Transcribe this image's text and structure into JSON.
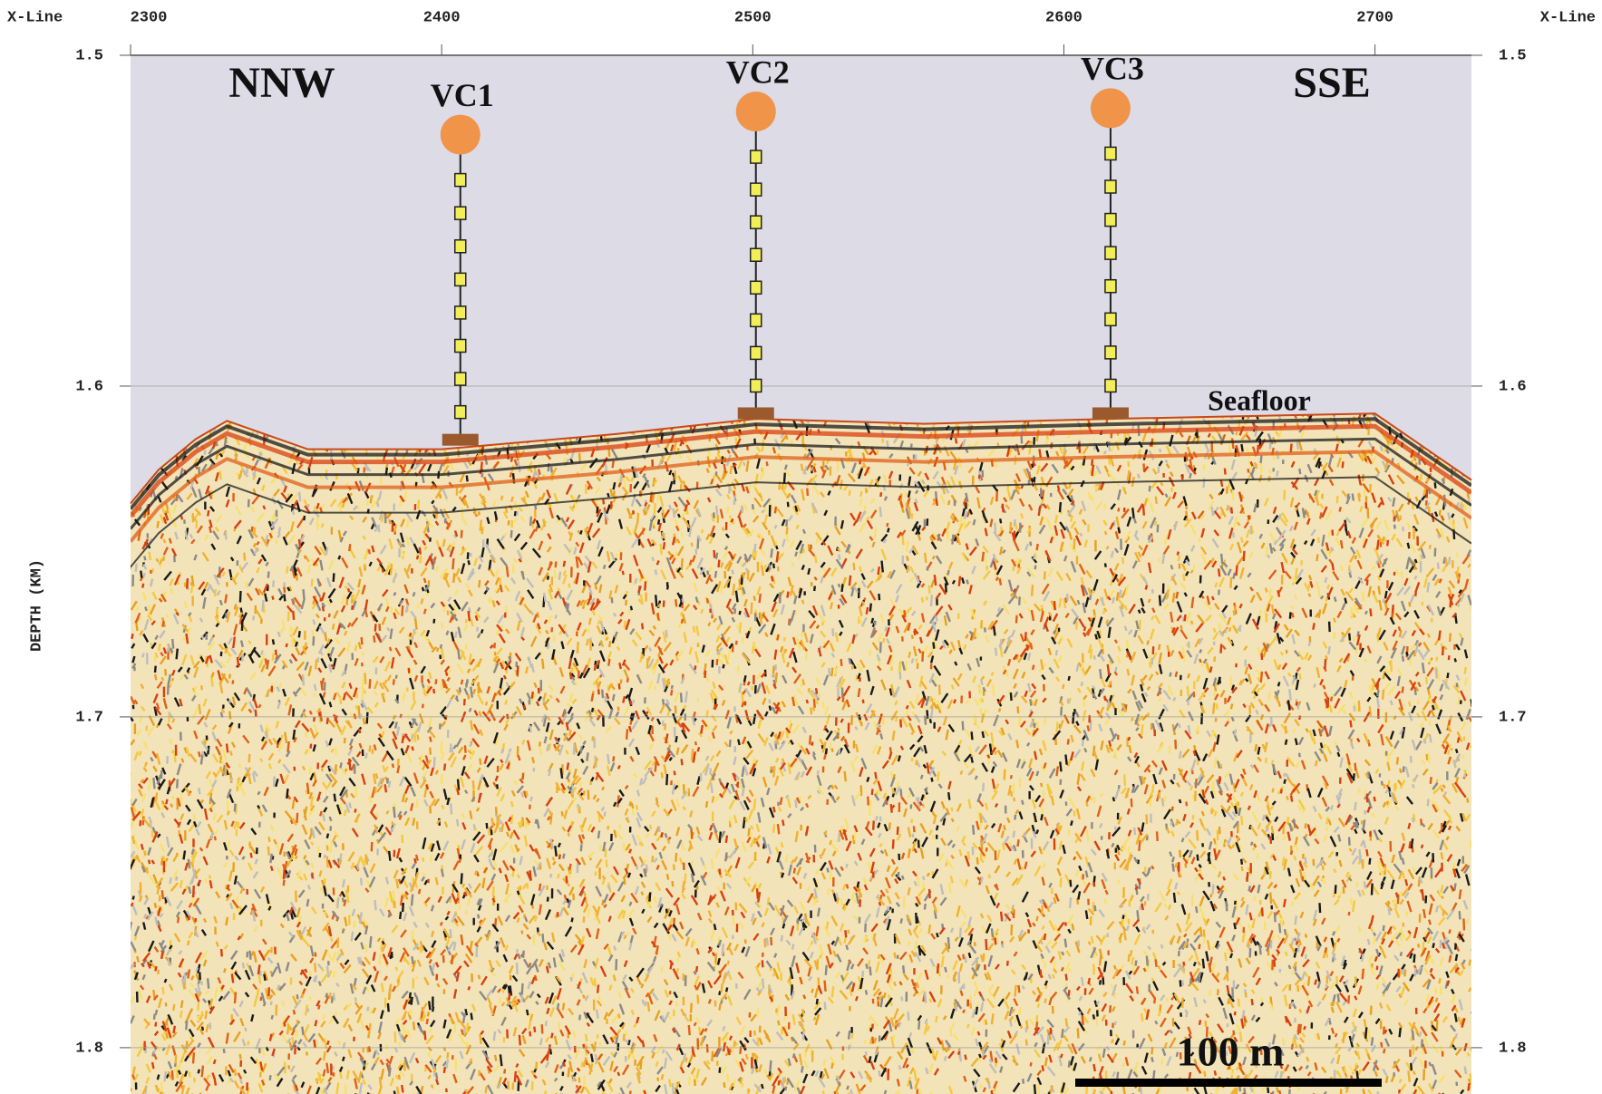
{
  "chart_data": {
    "type": "seismic-section",
    "x_label": "X-Line",
    "y_label": "DEPTH (KM)",
    "xlim": [
      2300,
      2731
    ],
    "xticks": [
      2300,
      2400,
      2500,
      2600,
      2700
    ],
    "ylim": [
      1.5,
      1.814
    ],
    "yticks": [
      1.5,
      1.6,
      1.7,
      1.8
    ],
    "grid": true,
    "annotations": {
      "left_direction": "NNW",
      "right_direction": "SSE",
      "seafloor_label": "Seafloor",
      "scale_bar": "100 m"
    },
    "seafloor": {
      "x": [
        2300,
        2309,
        2321,
        2331,
        2357,
        2400,
        2456,
        2501,
        2555,
        2615,
        2700,
        2731
      ],
      "depth": [
        1.6355,
        1.6253,
        1.616,
        1.6105,
        1.6191,
        1.6191,
        1.6145,
        1.6099,
        1.6114,
        1.6099,
        1.6083,
        1.6284
      ]
    },
    "wells": [
      {
        "name": "VC1",
        "x": 2406,
        "source_depth": 1.524,
        "seafloor_depth": 1.618
      },
      {
        "name": "VC2",
        "x": 2501,
        "source_depth": 1.517,
        "seafloor_depth": 1.61
      },
      {
        "name": "VC3",
        "x": 2615,
        "source_depth": 1.516,
        "seafloor_depth": 1.61
      }
    ],
    "colors": {
      "water": "#dcdbe6",
      "source": "#f0944a",
      "receiver": "#f2ee5a",
      "base": "#9a5a2e"
    }
  }
}
